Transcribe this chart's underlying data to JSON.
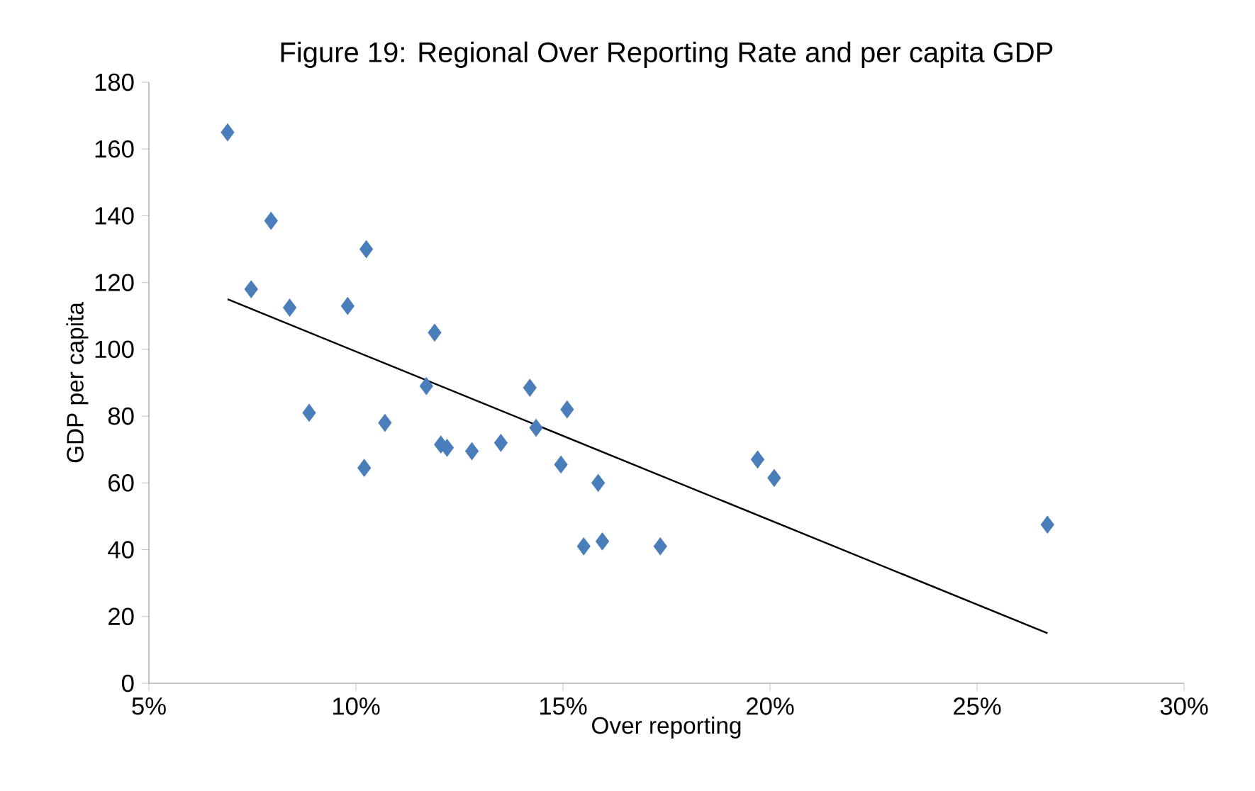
{
  "chart_data": {
    "type": "scatter",
    "title": "Figure 19: Regional Over Reporting Rate and per capita GDP",
    "xlabel": "Over reporting",
    "ylabel": "GDP per capita",
    "xlim": [
      5,
      30
    ],
    "xticks": [
      {
        "value": 5,
        "label": "5%"
      },
      {
        "value": 10,
        "label": "10%"
      },
      {
        "value": 15,
        "label": "15%"
      },
      {
        "value": 20,
        "label": "20%"
      },
      {
        "value": 25,
        "label": "25%"
      },
      {
        "value": 30,
        "label": "30%"
      }
    ],
    "ylim": [
      0,
      180
    ],
    "yticks": [
      0,
      20,
      40,
      60,
      80,
      100,
      120,
      140,
      160,
      180
    ],
    "grid": false,
    "series": [
      {
        "color": "#4a7ebb",
        "marker": "diamond",
        "x": [
          6.9,
          7.95,
          7.47,
          8.4,
          8.87,
          9.8,
          10.25,
          10.2,
          10.7,
          11.9,
          11.7,
          12.05,
          12.2,
          12.8,
          13.5,
          14.2,
          14.35,
          15.1,
          14.95,
          15.85,
          15.5,
          15.95,
          17.35,
          19.7,
          20.1,
          26.7
        ],
        "values": [
          165,
          138.5,
          118,
          112.5,
          81,
          113,
          130,
          64.5,
          78,
          105,
          89,
          71.5,
          70.5,
          69.5,
          72,
          88.5,
          76.5,
          82,
          65.5,
          60,
          41,
          42.5,
          41,
          67,
          61.5,
          47.5
        ]
      },
      {
        "type": "line",
        "color": "#000000",
        "marker": "none",
        "x": [
          6.9,
          26.7
        ],
        "values": [
          115,
          15
        ]
      }
    ]
  }
}
